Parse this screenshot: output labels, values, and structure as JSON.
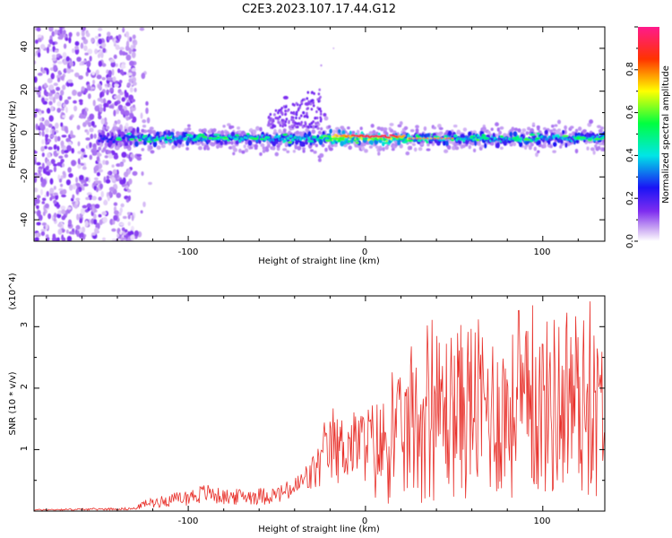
{
  "figure": {
    "title": "C2E3.2023.107.17.44.G12"
  },
  "colorbar": {
    "label": "Normalized spectral amplitude",
    "ticks": [
      "0.0",
      "0.2",
      "0.4",
      "0.6",
      "0.8"
    ],
    "colors": [
      "#ffffff",
      "#c9a6f2",
      "#7e2df0",
      "#1a14f5",
      "#00e6e6",
      "#00ff40",
      "#ffff00",
      "#ff3300",
      "#ff1a8c"
    ]
  },
  "chart_data": [
    {
      "type": "heatmap",
      "title": "",
      "xlabel": "Height of straight line (km)",
      "ylabel": "Frequency (Hz)",
      "xlim": [
        -187,
        135
      ],
      "ylim": [
        -50,
        50
      ],
      "x_ticks": [
        "-100",
        "0",
        "100"
      ],
      "y_ticks": [
        "-40",
        "-20",
        "0",
        "20",
        "40"
      ],
      "zlim": [
        0,
        1
      ],
      "grid": false,
      "description_values": {
        "main_band_center_hz": -2,
        "main_band_halfwidth_hz": 5,
        "broadband_noise_region_km": [
          -187,
          -130
        ],
        "peak_amplitude_km": [
          -5,
          20
        ]
      }
    },
    {
      "type": "line",
      "title": "",
      "xlabel": "Height of straight line (km)",
      "ylabel": "SNR (10 * v/v)",
      "y_multiplier": "(x10^4)",
      "xlim": [
        -187,
        135
      ],
      "ylim": [
        0,
        35000
      ],
      "x_ticks": [
        "-100",
        "0",
        "100"
      ],
      "y_ticks": [
        "1",
        "2",
        "3"
      ],
      "grid": false,
      "series": [
        {
          "color": "#e8302a",
          "envelope": {
            "x": [
              -187,
              -130,
              -125,
              -100,
              -90,
              -80,
              -50,
              -40,
              -30,
              -20,
              -10,
              0,
              10,
              20,
              30,
              40,
              50,
              60,
              70,
              80,
              90,
              100,
              110,
              115,
              120,
              130,
              135
            ],
            "y": [
              300,
              600,
              1800,
              3500,
              4500,
              3500,
              4000,
              5500,
              9000,
              15000,
              16000,
              17000,
              19000,
              22000,
              26000,
              29000,
              30000,
              32000,
              30000,
              29000,
              30000,
              31000,
              33000,
              35000,
              33000,
              30000,
              28000
            ]
          }
        }
      ]
    }
  ]
}
